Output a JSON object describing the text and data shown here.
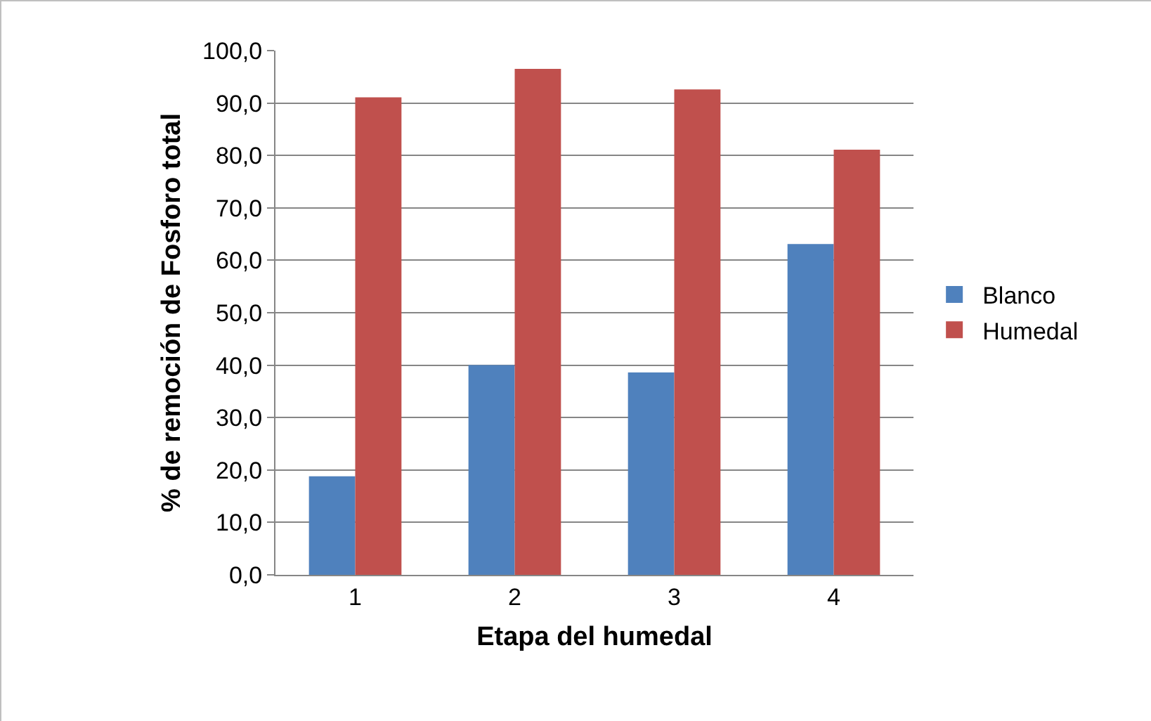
{
  "chart_data": {
    "type": "bar",
    "xlabel": "Etapa del humedal",
    "ylabel": "% de remoción de Fosforo total",
    "categories": [
      "1",
      "2",
      "3",
      "4"
    ],
    "series": [
      {
        "name": "Blanco",
        "color": "#4f81bd",
        "values": [
          18.8,
          40.0,
          38.6,
          63.1
        ]
      },
      {
        "name": "Humedal",
        "color": "#c0504d",
        "values": [
          91.1,
          96.5,
          92.6,
          81.1
        ]
      }
    ],
    "ylim": [
      0,
      100
    ],
    "yticks": [
      {
        "value": 0,
        "label": "0,0"
      },
      {
        "value": 10,
        "label": "10,0"
      },
      {
        "value": 20,
        "label": "20,0"
      },
      {
        "value": 30,
        "label": "30,0"
      },
      {
        "value": 40,
        "label": "40,0"
      },
      {
        "value": 50,
        "label": "50,0"
      },
      {
        "value": 60,
        "label": "60,0"
      },
      {
        "value": 70,
        "label": "70,0"
      },
      {
        "value": 80,
        "label": "80,0"
      },
      {
        "value": 90,
        "label": "90,0"
      },
      {
        "value": 100,
        "label": "100,0"
      }
    ],
    "grid": "y",
    "legend": "right"
  }
}
